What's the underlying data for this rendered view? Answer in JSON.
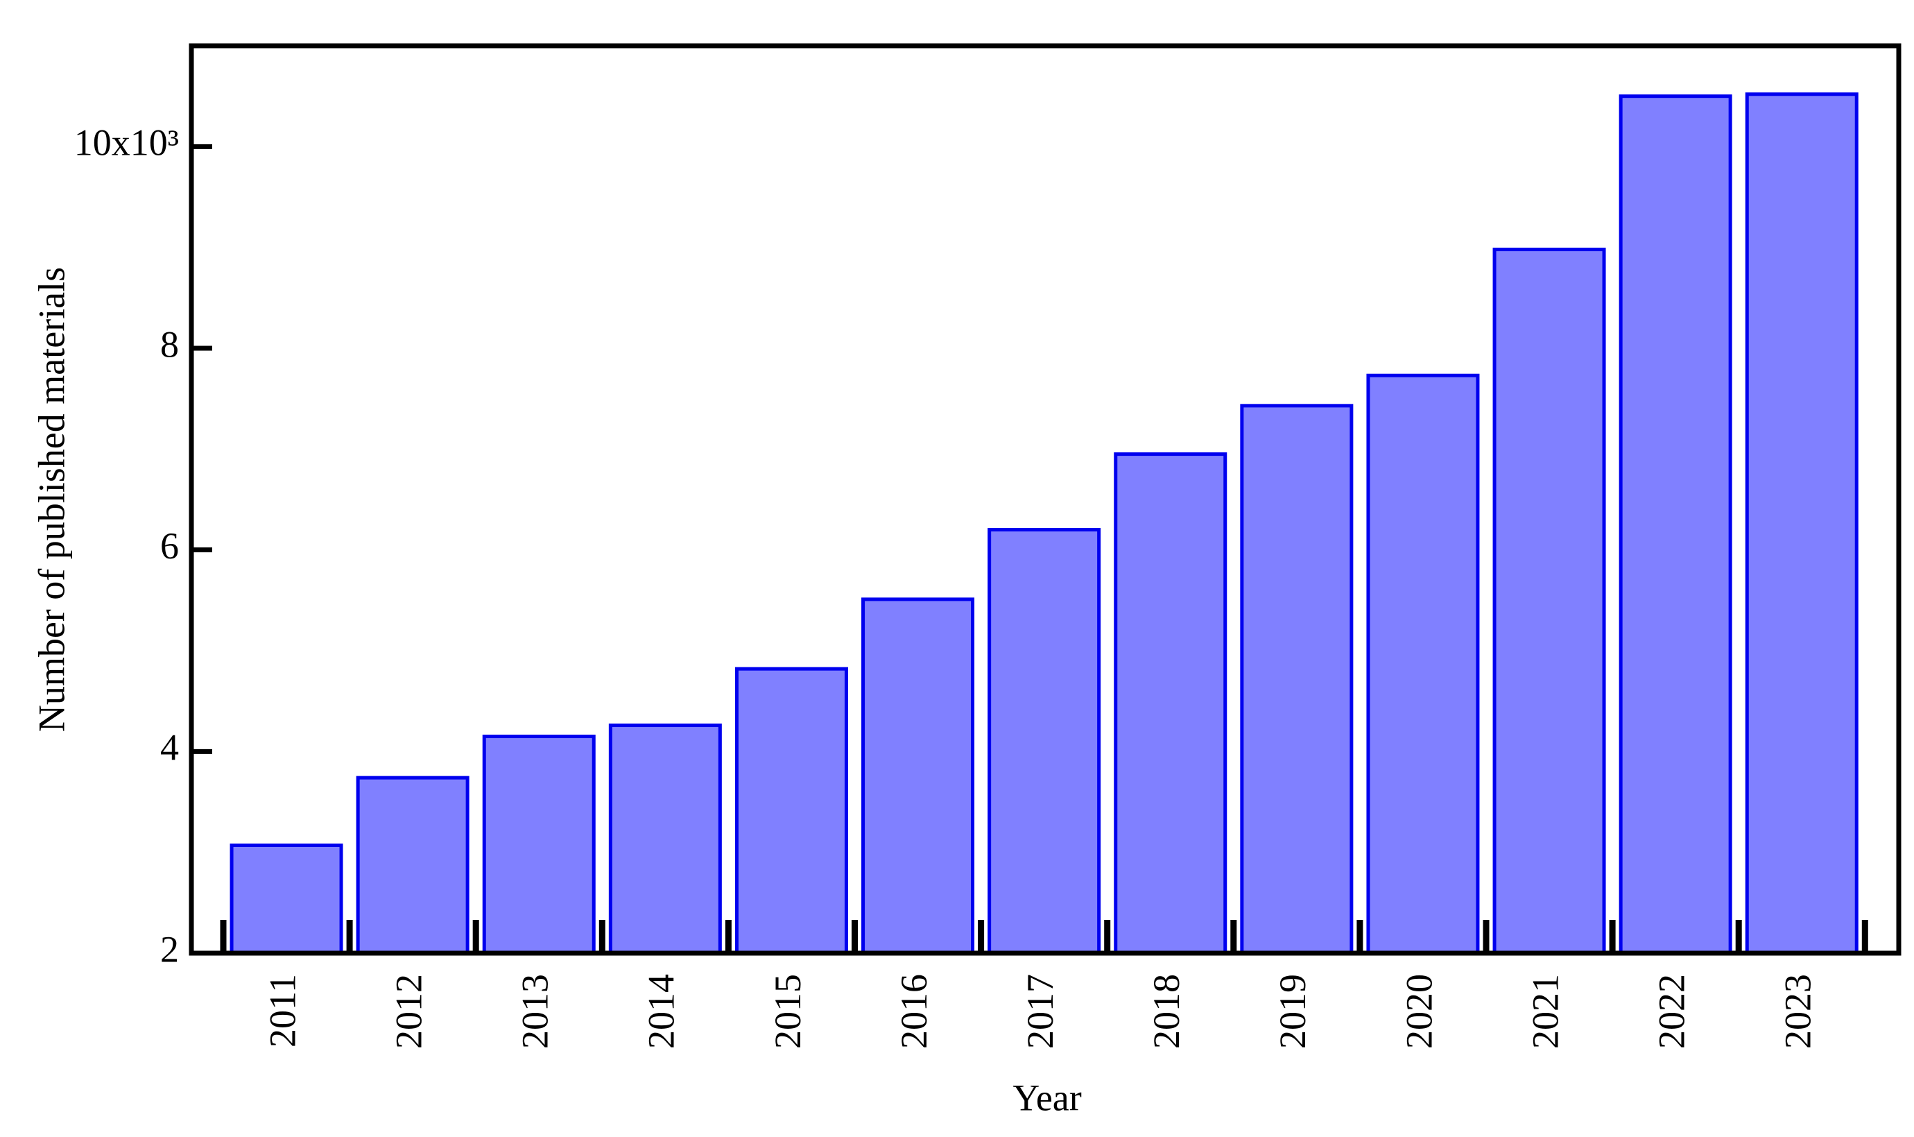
{
  "chart_data": {
    "type": "bar",
    "x_label": "Year",
    "y_label": "Number of published materials",
    "categories": [
      "2011",
      "2012",
      "2013",
      "2014",
      "2015",
      "2016",
      "2017",
      "2018",
      "2019",
      "2020",
      "2021",
      "2022",
      "2023"
    ],
    "values": [
      3.07,
      3.74,
      4.15,
      4.26,
      4.82,
      5.51,
      6.2,
      6.95,
      7.43,
      7.73,
      8.98,
      10.5,
      10.52
    ],
    "color": "#8080ff",
    "edge_color": "#0000ee",
    "ylim": [
      2,
      11
    ],
    "yticks": [
      2,
      4,
      6,
      8,
      {
        "value": 10,
        "label": "10x10³"
      }
    ],
    "grid": false
  }
}
